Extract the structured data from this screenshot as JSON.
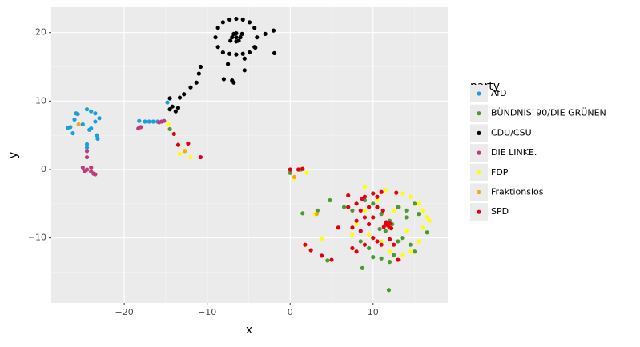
{
  "chart_data": {
    "type": "scatter",
    "xlabel": "x",
    "ylabel": "y",
    "legend_title": "party",
    "legend_position": "right",
    "grid": true,
    "background": "#ebebeb",
    "xlim": [
      -28.8,
      19.0
    ],
    "ylim": [
      -19.5,
      23.7
    ],
    "xticks": [
      {
        "value": -20,
        "label": "−20"
      },
      {
        "value": -10,
        "label": "−10"
      },
      0,
      10
    ],
    "yticks": [
      {
        "value": -10,
        "label": "−10"
      },
      0,
      10,
      20
    ],
    "xminor": [
      -25,
      -15,
      -5,
      5,
      15
    ],
    "yminor": [
      -15,
      -5,
      5,
      15
    ],
    "series": [
      {
        "name": "AfD",
        "color": "#1a9fd9",
        "x": [
          -26.5,
          -26,
          -25.8,
          -26.2,
          -24.5,
          -24,
          -23.5,
          -23,
          -23.5,
          -24,
          -23.3,
          -23.2,
          -24.5,
          -24.5,
          -24.2,
          -25,
          -26.8,
          -25.6,
          -18.2,
          -17.5,
          -17,
          -16.5,
          -16,
          -14.8
        ],
        "y": [
          6.2,
          7.3,
          8.2,
          5.3,
          8.8,
          8.5,
          8.2,
          7.5,
          7,
          6,
          5,
          4.5,
          3.7,
          3.2,
          5.8,
          6.6,
          6.1,
          8.1,
          7.1,
          7,
          7,
          7,
          7,
          9.8
        ]
      },
      {
        "name": "BÜNDNIS`90/DIE GRÜNEN",
        "color": "#4a9a2f",
        "x": [
          -14.5,
          0,
          1.3,
          0.5,
          4.8,
          1.5,
          3.3,
          4.5,
          8.7,
          11.9,
          6.5,
          7.5,
          9,
          10,
          11,
          12,
          13,
          14,
          15,
          16.5,
          15,
          14.5,
          13.5,
          12.5,
          11,
          10,
          9.5,
          8.5,
          12,
          13,
          14,
          11.5,
          12.3,
          10.8,
          15.5
        ],
        "y": [
          5.9,
          -0.5,
          0,
          -1.2,
          -4.5,
          -6.4,
          -6,
          -13.3,
          -14.4,
          -17.6,
          -5.5,
          -6,
          -4.5,
          -5,
          -6.5,
          -7.5,
          -5.5,
          -6,
          -5,
          -9.2,
          -12,
          -11,
          -10,
          -12.5,
          -13,
          -12.8,
          -11.5,
          -10.5,
          -13.5,
          -10.5,
          -7,
          -9,
          -8,
          -8.7,
          -6.5
        ]
      },
      {
        "name": "CDU/CSU",
        "color": "#000000",
        "x": [
          -4,
          -4.3,
          -4.9,
          -5.7,
          -6.5,
          -7.3,
          -8.1,
          -8.7,
          -9,
          -8.7,
          -8.1,
          -7.3,
          -6.5,
          -5.7,
          -4.9,
          -4.3,
          -6.5,
          -6,
          -7,
          -6.5,
          -6.5,
          -5.8,
          -7.2,
          -6.2,
          -6.8,
          -2,
          -3,
          -1.9,
          -4.2,
          -5.5,
          -5.5,
          -7.5,
          -8,
          -7,
          -6.8,
          -10.8,
          -11,
          -11.3,
          -12,
          -12.8,
          -13.3,
          -14.5,
          -14.2,
          -13.5,
          -14.5,
          -13.8
        ],
        "y": [
          19.3,
          20.7,
          21.5,
          21.9,
          22,
          21.9,
          21.5,
          20.7,
          19.3,
          17.9,
          17.1,
          16.9,
          16.8,
          16.9,
          17.1,
          17.9,
          19.3,
          19.3,
          19.3,
          19.9,
          18.7,
          19.8,
          18.8,
          18.8,
          19.8,
          20.3,
          19.8,
          17,
          17.8,
          16.2,
          14.5,
          15.4,
          13.2,
          13,
          12.7,
          15,
          14,
          12.7,
          12,
          11,
          10.5,
          10.4,
          9.2,
          9,
          8.8,
          8.5
        ]
      },
      {
        "name": "DIE LINKE.",
        "color": "#c03a7c",
        "x": [
          -24.5,
          -24.5,
          -25,
          -24.5,
          -24,
          -24,
          -23.5,
          -24.8,
          -18.3,
          -18,
          -15.8,
          -15.2,
          -15.5,
          -23.7
        ],
        "y": [
          2.7,
          1.8,
          0.3,
          0,
          0.3,
          -0.3,
          -0.7,
          -0.2,
          6,
          6.2,
          6.9,
          7.1,
          7,
          -0.6
        ]
      },
      {
        "name": "FDP",
        "color": "#ffff00",
        "x": [
          -14.7,
          -13.3,
          -12,
          -12.7,
          0.5,
          2,
          3,
          1.8,
          3.8,
          9,
          11.5,
          13.5,
          14.5,
          15.5,
          16,
          16.5,
          16.8,
          16,
          15.5,
          14.5,
          13.5,
          12,
          11,
          9.5,
          14,
          10.5,
          12.5,
          8,
          7.5,
          9
        ],
        "y": [
          6.6,
          2.3,
          1.8,
          2.8,
          -1.3,
          -0.5,
          -6.5,
          -11.1,
          -10.1,
          -2.5,
          -3,
          -3.5,
          -4,
          -5,
          -6,
          -7,
          -7.5,
          -8.5,
          -10.5,
          -12,
          -12.5,
          -12,
          -10.5,
          -9.5,
          -9,
          -4.5,
          -6,
          -8,
          -9.5,
          -6
        ]
      },
      {
        "name": "Fraktionslos",
        "color": "#f5a623",
        "x": [
          -25.5,
          -12.7,
          0.5,
          3.2,
          11.5
        ],
        "y": [
          6.6,
          2.7,
          -1.1,
          -6.5,
          -8
        ]
      },
      {
        "name": "SPD",
        "color": "#e3000f",
        "x": [
          -10.8,
          -12.3,
          -13.5,
          -14,
          0,
          1,
          1.5,
          2.5,
          1.8,
          3.8,
          5,
          5.8,
          7,
          7,
          8,
          8.5,
          9,
          9.5,
          10,
          10.5,
          11,
          9,
          8,
          7.5,
          8.5,
          9.5,
          10,
          10.5,
          11,
          12,
          12.5,
          13,
          9,
          8,
          7.5,
          10.5,
          12.8,
          11.2,
          10,
          8.7,
          12,
          11.5,
          11.8,
          12.2,
          11.3,
          11.6,
          12
        ],
        "y": [
          1.8,
          3.8,
          3.6,
          5.2,
          0,
          0,
          0.1,
          -11.8,
          -11,
          -12.6,
          -13.2,
          -8.5,
          -3.8,
          -5.5,
          -5,
          -6,
          -4,
          -5.5,
          -3.5,
          -4,
          -3.3,
          -7,
          -7.5,
          -8.5,
          -9,
          -8,
          -10,
          -10.5,
          -11,
          -10.2,
          -11,
          -13.2,
          -11,
          -12,
          -11.5,
          -5.5,
          -3.4,
          -6,
          -7,
          -4.3,
          -8.5,
          -8,
          -8.2,
          -8.6,
          -8.4,
          -7.7,
          -7.9
        ]
      }
    ]
  }
}
